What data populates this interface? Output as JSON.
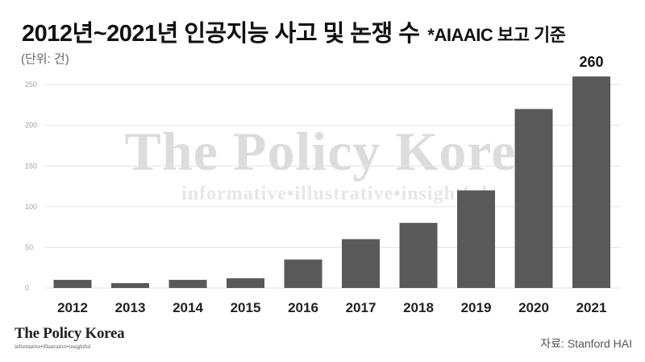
{
  "header": {
    "title": "2012년~2021년 인공지능 사고 및 논쟁 수",
    "note": "*AIAAIC 보고 기준",
    "unit": "(단위: 건)"
  },
  "watermark": {
    "main": "The Policy Korea",
    "sub": "informative•illustrative•insightful"
  },
  "logo": {
    "main": "The Policy Korea",
    "sub": "informative•illustrative•insightful"
  },
  "source": "자료: Stanford HAI",
  "colors": {
    "bar": "#595959",
    "grid": "#e3e3e3",
    "tick": "#a0a0a0",
    "watermark": "#dcdcdc"
  },
  "chart_data": {
    "type": "bar",
    "categories": [
      "2012",
      "2013",
      "2014",
      "2015",
      "2016",
      "2017",
      "2018",
      "2019",
      "2020",
      "2021"
    ],
    "values": [
      10,
      6,
      10,
      12,
      35,
      60,
      80,
      120,
      220,
      260
    ],
    "yticks": [
      0,
      50,
      100,
      150,
      200,
      250
    ],
    "ylim": [
      0,
      265
    ],
    "data_labels": {
      "2021": "260"
    },
    "grid": true
  }
}
